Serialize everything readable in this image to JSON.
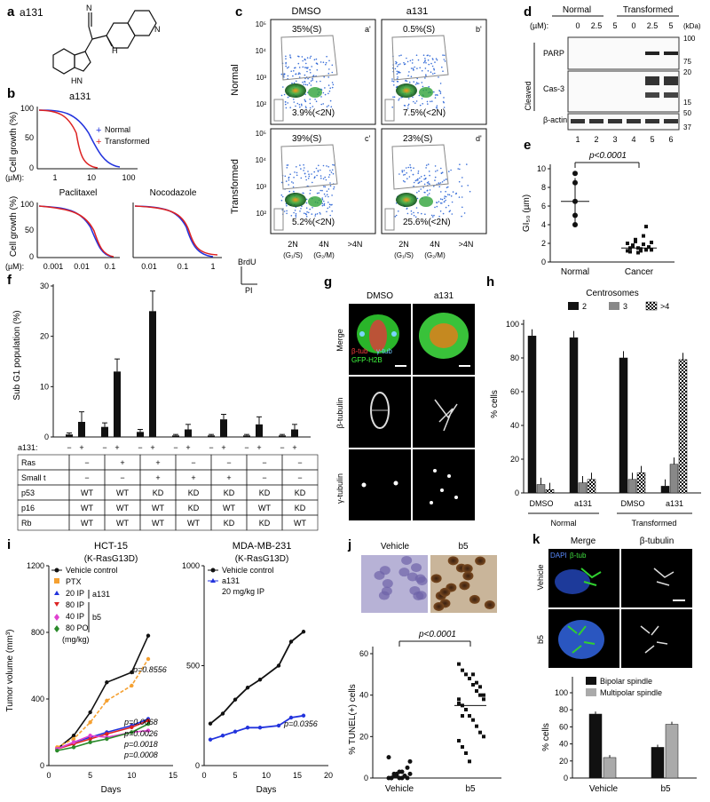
{
  "panels": {
    "a": {
      "letter": "a",
      "compound": "a131"
    },
    "b": {
      "letter": "b",
      "ylabel": "Cell growth (%)",
      "xunit": "(µM):",
      "legend": [
        "Normal",
        "Transformed"
      ],
      "top_title": "a131",
      "top_ticks": [
        "1",
        "10",
        "100"
      ],
      "bottom_left_title": "Paclitaxel",
      "bottom_left_ticks": [
        "0.001",
        "0.01",
        "0.1"
      ],
      "bottom_right_title": "Nocodazole",
      "bottom_right_ticks": [
        "0.01",
        "0.1",
        "1"
      ],
      "yticks": [
        "0",
        "50",
        "100"
      ]
    },
    "c": {
      "letter": "c",
      "col_titles": [
        "DMSO",
        "a131"
      ],
      "row_titles": [
        "Normal",
        "Transformed"
      ],
      "plots": [
        {
          "tag": "a'",
          "s": "35%(S)",
          "sub": "3.9%(<2N)"
        },
        {
          "tag": "b'",
          "s": "0.5%(S)",
          "sub": "7.5%(<2N)"
        },
        {
          "tag": "c'",
          "s": "39%(S)",
          "sub": "5.2%(<2N)"
        },
        {
          "tag": "d'",
          "s": "23%(S)",
          "sub": "25.6%(<2N)"
        }
      ],
      "yticks": [
        "10⁵",
        "10⁴",
        "10³",
        "10²"
      ],
      "xticks": [
        "2N",
        "4N",
        ">4N"
      ],
      "xsub": [
        "(G₁/S)",
        "(G₂/M)"
      ],
      "axis_y": "BrdU",
      "axis_x": "PI"
    },
    "d": {
      "letter": "d",
      "group_labels": [
        "Normal",
        "Transformed"
      ],
      "conc_label": "(µM):",
      "conc": [
        "0",
        "2.5",
        "5",
        "0",
        "2.5",
        "5"
      ],
      "kda": "(kDa)",
      "markers": [
        "100",
        "75",
        "20",
        "15",
        "50",
        "37"
      ],
      "cleaved": "Cleaved",
      "bands": [
        "PARP",
        "Cas-3",
        "β-actin"
      ],
      "lanes": [
        "1",
        "2",
        "3",
        "4",
        "5",
        "6"
      ]
    },
    "e": {
      "letter": "e",
      "pvalue": "p<0.0001",
      "ylabel": "GI₅₀ (µm)",
      "yticks": [
        "0",
        "2",
        "4",
        "6",
        "8",
        "10"
      ],
      "categories": [
        "Normal",
        "Cancer"
      ]
    },
    "f": {
      "letter": "f",
      "ylabel": "Sub G1 population (%)",
      "yticks": [
        "0",
        "10",
        "20",
        "30"
      ],
      "a131_label": "a131:",
      "pairs": [
        "−",
        "+"
      ],
      "rows": [
        {
          "name": "Ras",
          "vals": [
            "−",
            "+",
            "+",
            "−",
            "−",
            "−",
            "−"
          ]
        },
        {
          "name": "Small t",
          "vals": [
            "−",
            "−",
            "+",
            "+",
            "+",
            "−",
            "−"
          ]
        },
        {
          "name": "p53",
          "vals": [
            "WT",
            "WT",
            "KD",
            "KD",
            "KD",
            "KD",
            "KD"
          ]
        },
        {
          "name": "p16",
          "vals": [
            "WT",
            "WT",
            "WT",
            "KD",
            "WT",
            "WT",
            "KD"
          ]
        },
        {
          "name": "Rb",
          "vals": [
            "WT",
            "WT",
            "WT",
            "WT",
            "KD",
            "KD",
            "WT"
          ]
        }
      ]
    },
    "g": {
      "letter": "g",
      "cols": [
        "DMSO",
        "a131"
      ],
      "rows": [
        "Merge",
        "β-tubulin",
        "γ-tubulin"
      ],
      "legend": [
        "β-tub",
        "γ-tub",
        "GFP-H2B"
      ]
    },
    "h": {
      "letter": "h",
      "legend_title": "Centrosomes",
      "legend": [
        "2",
        "3",
        ">4"
      ],
      "ylabel": "% cells",
      "yticks": [
        "0",
        "20",
        "40",
        "60",
        "80",
        "100"
      ],
      "xcats": [
        "DMSO",
        "a131",
        "DMSO",
        "a131"
      ],
      "groups": [
        "Normal",
        "Transformed"
      ]
    },
    "i": {
      "letter": "i",
      "left_title": "HCT-15",
      "left_sub": "(K-RasG13D)",
      "right_title": "MDA-MB-231",
      "right_sub": "(K-RasG13D)",
      "ylabel": "Tumor volume (mm³)",
      "xlabel": "Days",
      "left_yticks": [
        "0",
        "400",
        "800",
        "1200"
      ],
      "left_xticks": [
        "0",
        "5",
        "10",
        "15"
      ],
      "right_yticks": [
        "0",
        "500",
        "1000"
      ],
      "right_xticks": [
        "0",
        "5",
        "10",
        "15",
        "20"
      ],
      "legend_left": [
        "Vehicle control",
        "PTX",
        "20 IP",
        "80 IP",
        "40 IP",
        "80 PO",
        "(mg/kg)"
      ],
      "legend_group_a131": "a131",
      "legend_group_b5": "b5",
      "pvals_left": [
        "p=0.8556",
        "p=0.0068",
        "p=0.0026",
        "p=0.0018",
        "p=0.0008"
      ],
      "legend_right": [
        "Vehicle control",
        "a131",
        "20 mg/kg IP"
      ],
      "pval_right": "p=0.0356"
    },
    "j": {
      "letter": "j",
      "img_labels": [
        "Vehicle",
        "b5"
      ],
      "pvalue": "p<0.0001",
      "ylabel": "% TUNEL(+) cells",
      "yticks": [
        "0",
        "20",
        "40",
        "60"
      ],
      "categories": [
        "Vehicle",
        "b5"
      ]
    },
    "k": {
      "letter": "k",
      "col_titles": [
        "Merge",
        "β-tubulin"
      ],
      "merge_legend": [
        "DAPI",
        "β-tub"
      ],
      "row_labels": [
        "Vehicle",
        "b5"
      ],
      "legend": [
        "Bipolar spindle",
        "Multipolar spindle"
      ],
      "ylabel": "% cells",
      "yticks": [
        "0",
        "20",
        "40",
        "60",
        "80",
        "100"
      ],
      "categories": [
        "Vehicle",
        "b5"
      ]
    }
  },
  "chart_data": [
    {
      "panel": "f",
      "type": "bar",
      "categories": [
        "1",
        "2",
        "3",
        "4",
        "5",
        "6",
        "7"
      ],
      "series": [
        {
          "name": "−",
          "values": [
            0.5,
            2,
            1,
            0.3,
            0.3,
            0.3,
            0.3
          ]
        },
        {
          "name": "+",
          "values": [
            3,
            13,
            25,
            1.5,
            3.5,
            2.5,
            1.5
          ]
        }
      ],
      "errors": [
        [
          0.3,
          0.8,
          0.5,
          0.2,
          0.2,
          0.2,
          0.2
        ],
        [
          2,
          2.5,
          4,
          1,
          1,
          1.5,
          1
        ]
      ],
      "ylim": [
        0,
        30
      ]
    },
    {
      "panel": "h",
      "type": "bar",
      "categories": [
        "DMSO",
        "a131",
        "DMSO",
        "a131"
      ],
      "series": [
        {
          "name": "2",
          "values": [
            93,
            92,
            80,
            4
          ]
        },
        {
          "name": "3",
          "values": [
            5,
            6,
            8,
            17
          ]
        },
        {
          "name": ">4",
          "values": [
            2,
            8,
            12,
            79
          ]
        }
      ],
      "ylim": [
        0,
        100
      ]
    },
    {
      "panel": "k",
      "type": "bar",
      "categories": [
        "Vehicle",
        "b5"
      ],
      "series": [
        {
          "name": "Bipolar spindle",
          "values": [
            75,
            36
          ]
        },
        {
          "name": "Multipolar spindle",
          "values": [
            24,
            63
          ]
        }
      ],
      "ylim": [
        0,
        100
      ]
    },
    {
      "panel": "i-left",
      "type": "line",
      "x": [
        1,
        3,
        5,
        7,
        10,
        12
      ],
      "series": [
        {
          "name": "Vehicle control",
          "values": [
            100,
            180,
            320,
            500,
            560,
            780
          ]
        },
        {
          "name": "PTX",
          "values": [
            110,
            160,
            260,
            390,
            480,
            640
          ]
        },
        {
          "name": "20 IP",
          "values": [
            100,
            140,
            170,
            200,
            240,
            280
          ]
        },
        {
          "name": "80 IP",
          "values": [
            100,
            130,
            160,
            190,
            230,
            270
          ]
        },
        {
          "name": "40 IP",
          "values": [
            100,
            140,
            180,
            170,
            200,
            210
          ]
        },
        {
          "name": "80 PO",
          "values": [
            90,
            110,
            140,
            160,
            200,
            250
          ]
        }
      ],
      "ylim": [
        0,
        1200
      ],
      "xlim": [
        0,
        15
      ]
    },
    {
      "panel": "i-right",
      "type": "line",
      "x": [
        1,
        3,
        5,
        7,
        9,
        12,
        14,
        16
      ],
      "series": [
        {
          "name": "Vehicle control",
          "values": [
            210,
            260,
            330,
            390,
            430,
            500,
            620,
            670
          ]
        },
        {
          "name": "a131",
          "values": [
            130,
            150,
            170,
            190,
            190,
            200,
            240,
            250
          ]
        }
      ],
      "ylim": [
        0,
        1000
      ],
      "xlim": [
        0,
        20
      ]
    },
    {
      "panel": "e",
      "type": "scatter",
      "categories": [
        "Normal",
        "Cancer"
      ],
      "series": [
        {
          "name": "Normal",
          "values": [
            9.5,
            8.5,
            6.5,
            5,
            4
          ]
        },
        {
          "name": "Cancer",
          "values": [
            1.2,
            1.5,
            1.8,
            2.2,
            1.0,
            1.4,
            2.8,
            3.8,
            1.6,
            1.3,
            2.0,
            1.1,
            1.7,
            2.4,
            1.5,
            1.2,
            1.9,
            1.3,
            1.6,
            2.1
          ]
        }
      ],
      "ylim": [
        0,
        10
      ]
    },
    {
      "panel": "j",
      "type": "scatter",
      "categories": [
        "Vehicle",
        "b5"
      ],
      "series": [
        {
          "name": "Vehicle",
          "values": [
            0,
            0,
            1,
            2,
            3,
            0,
            1,
            5,
            8,
            10,
            0,
            2,
            1,
            0,
            3,
            1,
            0,
            2
          ]
        },
        {
          "name": "b5",
          "values": [
            55,
            52,
            50,
            48,
            45,
            42,
            40,
            38,
            36,
            35,
            33,
            30,
            28,
            25,
            22,
            20,
            18,
            15,
            12,
            8,
            50,
            46,
            44,
            40,
            38,
            30
          ]
        }
      ],
      "ylim": [
        0,
        60
      ]
    }
  ]
}
